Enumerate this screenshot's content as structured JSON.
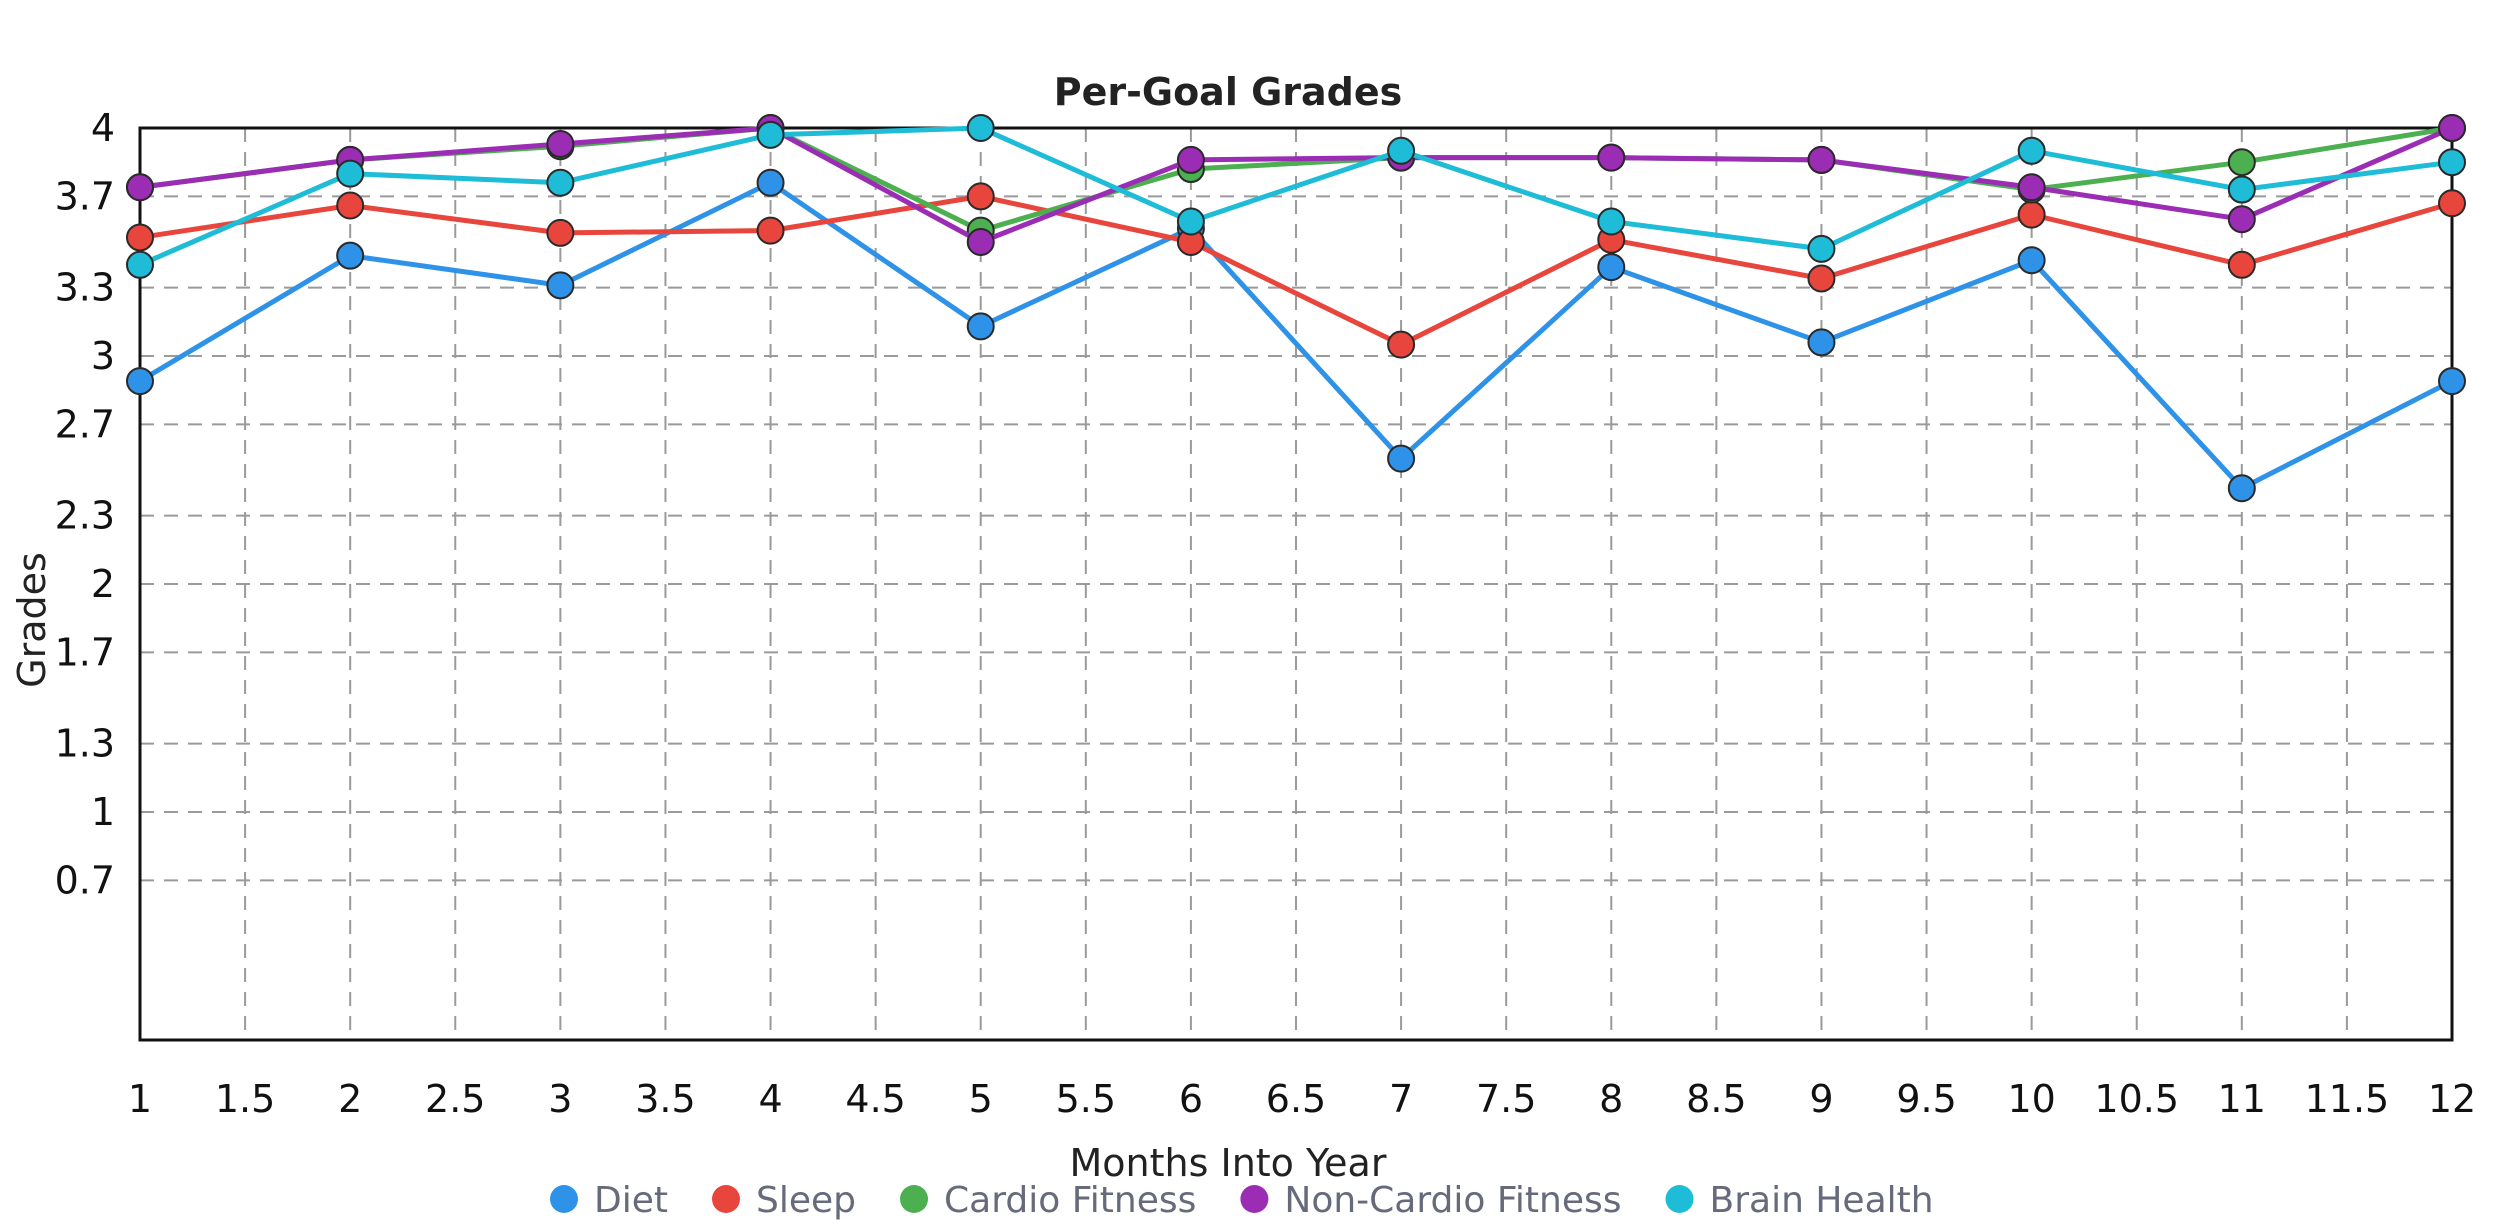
{
  "chart_data": {
    "type": "line",
    "title": "Per-Goal Grades",
    "xlabel": "Months Into Year",
    "ylabel": "Grades",
    "xlim": [
      1,
      12
    ],
    "ylim": [
      0,
      4
    ],
    "grid": true,
    "legend_position": "bottom-center",
    "x_ticks": [
      "1",
      "1.5",
      "2",
      "2.5",
      "3",
      "3.5",
      "4",
      "4.5",
      "5",
      "5.5",
      "6",
      "6.5",
      "7",
      "7.5",
      "8",
      "8.5",
      "9",
      "9.5",
      "10",
      "10.5",
      "11",
      "11.5",
      "12"
    ],
    "y_ticks": [
      "0.7",
      "1",
      "1.3",
      "1.7",
      "2",
      "2.3",
      "2.7",
      "3",
      "3.3",
      "3.7",
      "4"
    ],
    "x": [
      1,
      2,
      3,
      4,
      5,
      6,
      7,
      8,
      9,
      10,
      11,
      12
    ],
    "series": [
      {
        "name": "Diet",
        "color": "#2e93e8",
        "values": [
          2.89,
          3.44,
          3.31,
          3.76,
          3.13,
          3.56,
          2.55,
          3.39,
          3.06,
          3.42,
          2.42,
          2.89
        ]
      },
      {
        "name": "Sleep",
        "color": "#e8453c",
        "values": [
          3.52,
          3.66,
          3.54,
          3.55,
          3.7,
          3.5,
          3.05,
          3.51,
          3.34,
          3.62,
          3.4,
          3.67
        ]
      },
      {
        "name": "Cardio Fitness",
        "color": "#4caf50",
        "values": [
          3.74,
          3.86,
          3.92,
          4.0,
          3.55,
          3.82,
          3.87,
          3.87,
          3.86,
          3.73,
          3.85,
          4.0
        ]
      },
      {
        "name": "Non-Cardio Fitness",
        "color": "#9b2db5",
        "values": [
          3.74,
          3.86,
          3.93,
          4.0,
          3.5,
          3.86,
          3.87,
          3.87,
          3.86,
          3.74,
          3.6,
          4.0
        ]
      },
      {
        "name": "Brain Health",
        "color": "#1ebcd6",
        "values": [
          3.4,
          3.8,
          3.76,
          3.97,
          4.0,
          3.59,
          3.9,
          3.59,
          3.47,
          3.9,
          3.73,
          3.85
        ]
      }
    ]
  }
}
